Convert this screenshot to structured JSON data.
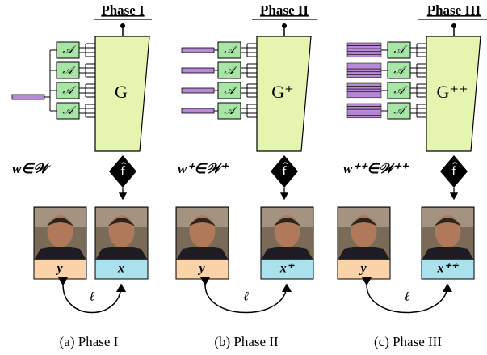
{
  "panels": [
    {
      "title": "Phase I",
      "latent": "w∈𝒲",
      "generator": "G",
      "mapper": [
        "𝒜",
        "𝒜",
        "𝒜",
        "𝒜"
      ],
      "encoder": "f̂",
      "target": "y",
      "output": "x",
      "loss": "ℓ",
      "caption": "(a) Phase I"
    },
    {
      "title": "Phase II",
      "latent": "w⁺∈𝒲⁺",
      "generator": "G⁺",
      "mapper": [
        "𝒜",
        "𝒜",
        "𝒜",
        "𝒜"
      ],
      "encoder": "f̂",
      "target": "y",
      "output": "x⁺",
      "loss": "ℓ",
      "caption": "(b) Phase II"
    },
    {
      "title": "Phase III",
      "latent": "w⁺⁺∈𝒲⁺⁺",
      "generator": "G⁺⁺",
      "mapper": [
        "𝒜",
        "𝒜",
        "𝒜",
        "𝒜"
      ],
      "encoder": "f̂",
      "target": "y",
      "output": "x⁺⁺",
      "loss": "ℓ",
      "caption": "(c) Phase III"
    }
  ]
}
